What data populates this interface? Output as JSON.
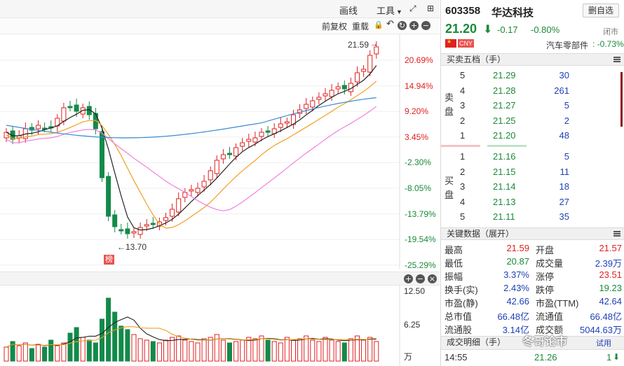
{
  "toolbar": {
    "draw_line": "画线",
    "tools": "工具",
    "fq": "前复权",
    "reload": "重载"
  },
  "price_axis": [
    "20.69%",
    "14.94%",
    "9.20%",
    "3.45%",
    "-2.30%",
    "-8.05%",
    "-13.79%",
    "-19.54%",
    "-25.29%"
  ],
  "annotations": {
    "high_label": "21.59",
    "low_label": "←13.70",
    "rank_badge": "榜"
  },
  "volume_axis": [
    "12.50",
    "6.25",
    "万"
  ],
  "quote": {
    "code": "603358",
    "name": "华达科技",
    "watch_button": "删自选",
    "price": "21.20",
    "change": "-0.17",
    "change_pct": "-0.80%",
    "status": "闭市",
    "currency": "CNY",
    "sector": "汽车零部件",
    "sector_change": ": -0.73%"
  },
  "orderbook": {
    "title": "买卖五档（手）",
    "sell_label": [
      "卖",
      "盘"
    ],
    "buy_label": [
      "买",
      "盘"
    ],
    "asks": [
      {
        "level": "5",
        "price": "21.29",
        "qty": "30"
      },
      {
        "level": "4",
        "price": "21.28",
        "qty": "261"
      },
      {
        "level": "3",
        "price": "21.27",
        "qty": "5"
      },
      {
        "level": "2",
        "price": "21.25",
        "qty": "2"
      },
      {
        "level": "1",
        "price": "21.20",
        "qty": "48"
      }
    ],
    "bids": [
      {
        "level": "1",
        "price": "21.16",
        "qty": "5"
      },
      {
        "level": "2",
        "price": "21.15",
        "qty": "11"
      },
      {
        "level": "3",
        "price": "21.14",
        "qty": "18"
      },
      {
        "level": "4",
        "price": "21.13",
        "qty": "27"
      },
      {
        "level": "5",
        "price": "21.11",
        "qty": "35"
      }
    ]
  },
  "keydata": {
    "title": "关键数据（展开）",
    "rows": [
      {
        "l1": "最高",
        "v1": "21.59",
        "c1": "red",
        "l2": "开盘",
        "v2": "21.57",
        "c2": "red"
      },
      {
        "l1": "最低",
        "v1": "20.87",
        "c1": "green",
        "l2": "成交量",
        "v2": "2.39万",
        "c2": "blue"
      },
      {
        "l1": "振幅",
        "v1": "3.37%",
        "c1": "blue",
        "l2": "涨停",
        "v2": "23.51",
        "c2": "red"
      },
      {
        "l1": "换手(实)",
        "v1": "2.43%",
        "c1": "blue",
        "l2": "跌停",
        "v2": "19.23",
        "c2": "green"
      },
      {
        "l1": "市盈(静)",
        "v1": "42.66",
        "c1": "blue",
        "l2": "市盈(TTM)",
        "v2": "42.64",
        "c2": "blue"
      },
      {
        "l1": "总市值",
        "v1": "66.48亿",
        "c1": "blue",
        "l2": "流通值",
        "v2": "66.48亿",
        "c2": "blue"
      },
      {
        "l1": "流通股",
        "v1": "3.14亿",
        "c1": "blue",
        "l2": "成交额",
        "v2": "5044.63万",
        "c2": "blue"
      }
    ]
  },
  "trades": {
    "title": "成交明细（手）",
    "time": "14:55",
    "price": "21.26",
    "qty": "1"
  },
  "watermark": "冬哥论市",
  "watermark_sub": "试用",
  "colors": {
    "up": "#e02020",
    "down": "#138a4a",
    "ma5": "#222222",
    "ma10": "#f0a020",
    "ma20": "#f080e0",
    "ma60": "#3a8ad6"
  }
}
